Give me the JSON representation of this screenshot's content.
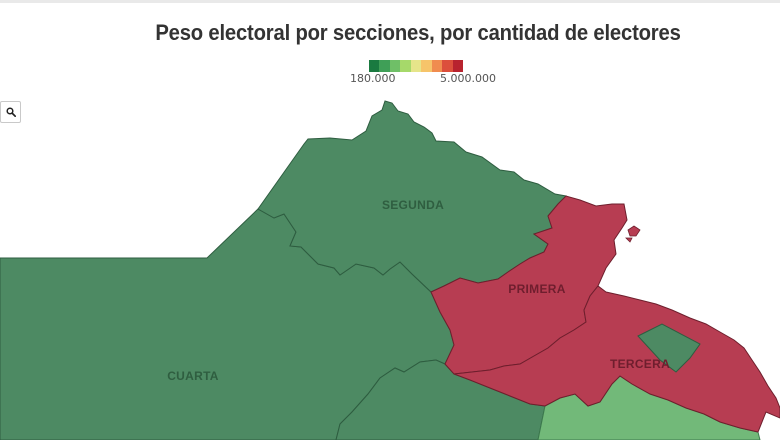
{
  "title": "Peso electoral por secciones, por cantidad de electores",
  "legend": {
    "min_label": "180.000",
    "max_label": "5.000.000",
    "colors": [
      "#1a7a40",
      "#3f9f57",
      "#6fbf67",
      "#a6d96a",
      "#e6e58a",
      "#f6c46a",
      "#f08c4f",
      "#dc4f3c",
      "#b8232f"
    ]
  },
  "search_button": {
    "icon": "search-icon"
  },
  "colors": {
    "segunda": "#4d8a63",
    "cuarta": "#4d8a63",
    "primera": "#b73d52",
    "tercera": "#b73d52",
    "tercera_enclave": "#4d8a63",
    "southeast": "#72b979"
  },
  "regions": [
    {
      "id": "segunda",
      "label": "SEGUNDA"
    },
    {
      "id": "primera",
      "label": "PRIMERA"
    },
    {
      "id": "tercera",
      "label": "TERCERA"
    },
    {
      "id": "cuarta",
      "label": "CUARTA"
    }
  ]
}
